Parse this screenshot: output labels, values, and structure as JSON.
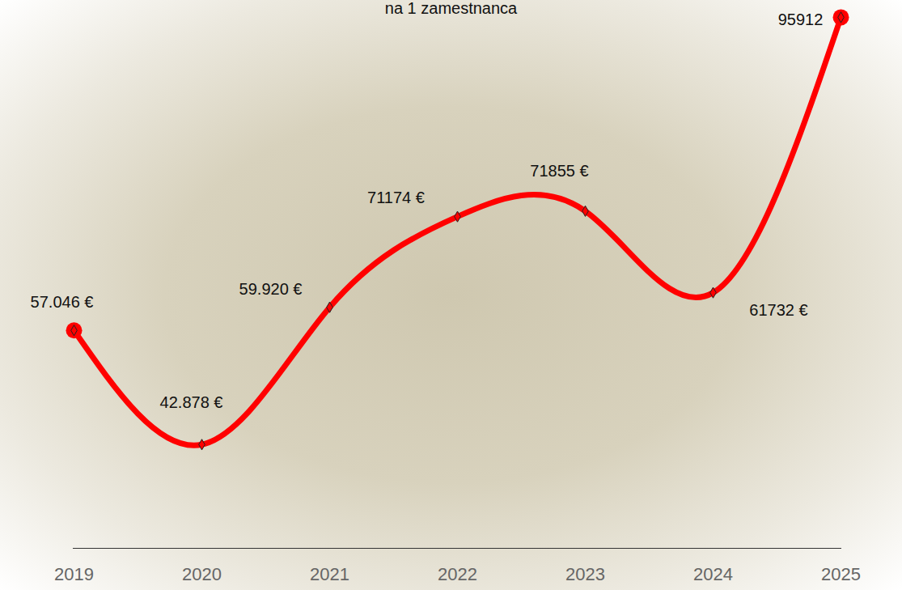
{
  "chart_data": {
    "type": "line",
    "title": "na 1 zamestnanca",
    "categories": [
      "2019",
      "2020",
      "2021",
      "2022",
      "2023",
      "2024",
      "2025"
    ],
    "values": [
      57046,
      42878,
      59920,
      71174,
      71855,
      61732,
      95912
    ],
    "value_labels": [
      "57.046 €",
      "42.878 €",
      "59.920 €",
      "71174 €",
      "71855 €",
      "61732 €",
      "95912"
    ],
    "color": "#ff0000",
    "ylim": [
      30000,
      96000
    ],
    "data_labels": true,
    "tick_labels": "x",
    "marker": "diamond",
    "grid": false
  }
}
